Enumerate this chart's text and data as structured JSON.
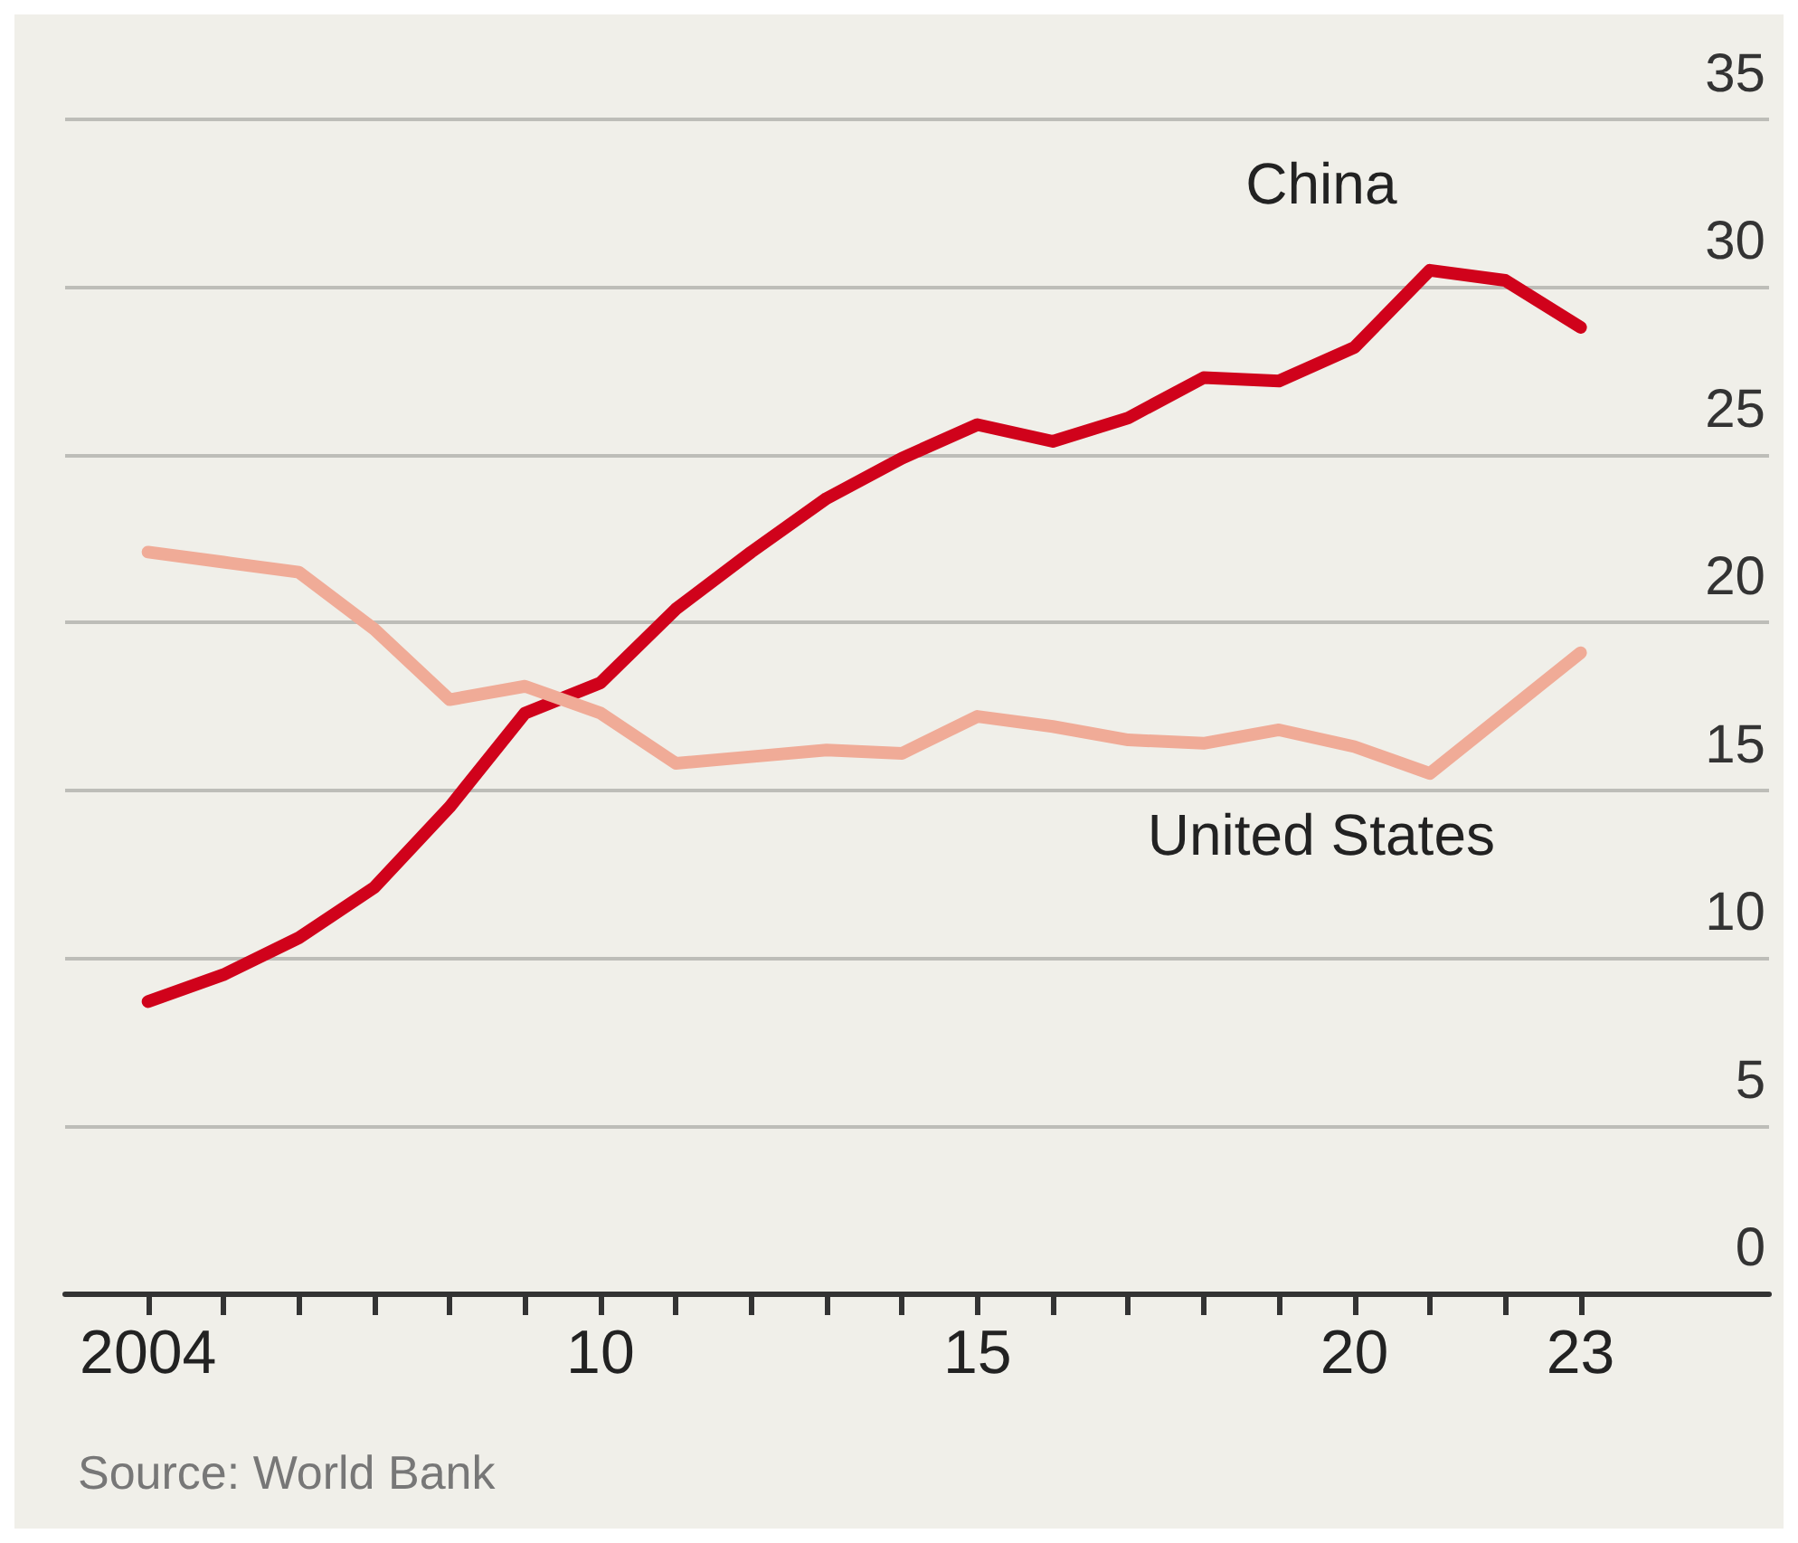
{
  "chart_data": {
    "type": "line",
    "x": [
      2004,
      2005,
      2006,
      2007,
      2008,
      2009,
      2010,
      2011,
      2012,
      2013,
      2014,
      2015,
      2016,
      2017,
      2018,
      2019,
      2020,
      2021,
      2022,
      2023
    ],
    "series": [
      {
        "name": "China",
        "color": "#d0021b",
        "values": [
          8.7,
          9.5,
          10.6,
          12.1,
          14.5,
          17.3,
          18.2,
          20.4,
          22.1,
          23.7,
          24.9,
          25.9,
          25.4,
          26.1,
          27.3,
          27.2,
          28.2,
          30.5,
          30.2,
          28.8
        ]
      },
      {
        "name": "United States",
        "color": "#f0ab97",
        "values": [
          22.1,
          21.8,
          21.5,
          19.8,
          17.7,
          18.1,
          17.3,
          15.8,
          16.0,
          16.2,
          16.1,
          17.2,
          16.9,
          16.5,
          16.4,
          16.8,
          16.3,
          15.5,
          17.3,
          19.1
        ]
      }
    ],
    "xlim": [
      2002.9,
      2025.5
    ],
    "xticks": [
      2004,
      {
        "value": 2005,
        "label": null
      },
      {
        "value": 2006,
        "label": null
      },
      {
        "value": 2007,
        "label": null
      },
      {
        "value": 2008,
        "label": null
      },
      {
        "value": 2009,
        "label": null
      },
      {
        "value": 2010,
        "label": "10"
      },
      {
        "value": 2011,
        "label": null
      },
      {
        "value": 2012,
        "label": null
      },
      {
        "value": 2013,
        "label": null
      },
      {
        "value": 2014,
        "label": null
      },
      {
        "value": 2015,
        "label": "15"
      },
      {
        "value": 2016,
        "label": null
      },
      {
        "value": 2017,
        "label": null
      },
      {
        "value": 2018,
        "label": null
      },
      {
        "value": 2019,
        "label": null
      },
      {
        "value": 2020,
        "label": "20"
      },
      {
        "value": 2021,
        "label": null
      },
      {
        "value": 2022,
        "label": null
      },
      {
        "value": 2023,
        "label": "23"
      }
    ],
    "ylim": [
      0,
      35
    ],
    "yticks": [
      0,
      5,
      10,
      15,
      20,
      25,
      30,
      35
    ],
    "grid": "y",
    "legend": false,
    "marker": "none",
    "line_style": "solid",
    "annotations": [
      "Source: World Bank"
    ]
  }
}
